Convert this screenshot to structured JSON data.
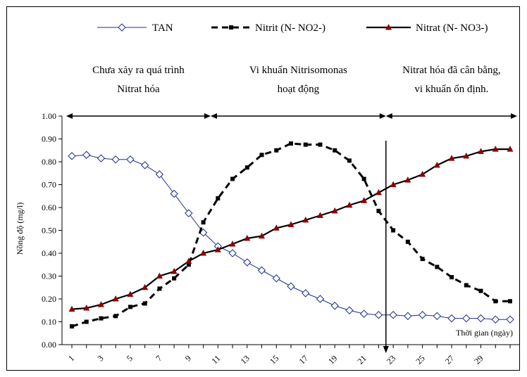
{
  "chart_data": {
    "type": "line",
    "title": "",
    "xlabel": "Thời gian (ngày)",
    "ylabel": "Nồng độ (mg/l)",
    "ylim": [
      0,
      1.0
    ],
    "xlim": [
      1,
      31
    ],
    "grid": false,
    "legend_position": "top",
    "x_tick_labels": [
      "1",
      "3",
      "5",
      "7",
      "9",
      "11",
      "13",
      "15",
      "17",
      "19",
      "21",
      "23",
      "25",
      "27",
      "29"
    ],
    "y_tick_labels": [
      "0.00",
      "0.10",
      "0.20",
      "0.30",
      "0.40",
      "0.50",
      "0.60",
      "0.70",
      "0.80",
      "0.90",
      "1.00"
    ],
    "phases": [
      {
        "label_line1": "Chưa xảy ra quá trình",
        "label_line2": "Nitrat hóa",
        "x_start": 1,
        "x_end": 10.5
      },
      {
        "label_line1": "Vi khuẩn Nitrisomonas",
        "label_line2": "hoạt động",
        "x_start": 10.5,
        "x_end": 22.5
      },
      {
        "label_line1": "Nitrat hóa đã cân bằng,",
        "label_line2": "vi khuẩn ổn định.",
        "x_start": 22.5,
        "x_end": 31
      }
    ],
    "vertical_marker_x": 22.5,
    "series": [
      {
        "name": "TAN",
        "color": "#1f2f8f",
        "line_style": "solid",
        "marker": "diamond",
        "x": [
          1,
          2,
          3,
          4,
          5,
          6,
          7,
          8,
          9,
          10,
          11,
          12,
          13,
          14,
          15,
          16,
          17,
          18,
          19,
          20,
          21,
          22,
          23,
          24,
          25,
          26,
          27,
          28,
          29,
          30,
          31
        ],
        "values": [
          0.825,
          0.83,
          0.815,
          0.81,
          0.81,
          0.785,
          0.745,
          0.66,
          0.575,
          0.49,
          0.43,
          0.4,
          0.36,
          0.325,
          0.29,
          0.255,
          0.225,
          0.2,
          0.17,
          0.15,
          0.135,
          0.13,
          0.13,
          0.125,
          0.13,
          0.125,
          0.115,
          0.115,
          0.115,
          0.11,
          0.11
        ]
      },
      {
        "name": "Nitrit (N- NO2-)",
        "color": "#000000",
        "line_style": "dashed",
        "marker": "square",
        "x": [
          1,
          2,
          3,
          4,
          5,
          6,
          7,
          8,
          9,
          10,
          11,
          12,
          13,
          14,
          15,
          16,
          17,
          18,
          19,
          20,
          21,
          22,
          23,
          24,
          25,
          26,
          27,
          28,
          29,
          30,
          31
        ],
        "values": [
          0.08,
          0.1,
          0.115,
          0.125,
          0.165,
          0.18,
          0.245,
          0.29,
          0.35,
          0.535,
          0.64,
          0.725,
          0.775,
          0.83,
          0.85,
          0.88,
          0.875,
          0.875,
          0.85,
          0.805,
          0.725,
          0.585,
          0.5,
          0.45,
          0.375,
          0.34,
          0.295,
          0.26,
          0.235,
          0.19,
          0.19
        ]
      },
      {
        "name": "Nitrat (N- NO3-)",
        "color": "#8b0000",
        "line_color": "#000000",
        "line_style": "solid",
        "marker": "triangle",
        "x": [
          1,
          2,
          3,
          4,
          5,
          6,
          7,
          8,
          9,
          10,
          11,
          12,
          13,
          14,
          15,
          16,
          17,
          18,
          19,
          20,
          21,
          22,
          23,
          24,
          25,
          26,
          27,
          28,
          29,
          30,
          31
        ],
        "values": [
          0.155,
          0.16,
          0.175,
          0.2,
          0.22,
          0.25,
          0.3,
          0.32,
          0.365,
          0.4,
          0.415,
          0.44,
          0.465,
          0.475,
          0.51,
          0.525,
          0.545,
          0.565,
          0.585,
          0.61,
          0.63,
          0.665,
          0.7,
          0.72,
          0.745,
          0.785,
          0.815,
          0.825,
          0.845,
          0.855,
          0.855
        ]
      }
    ]
  }
}
